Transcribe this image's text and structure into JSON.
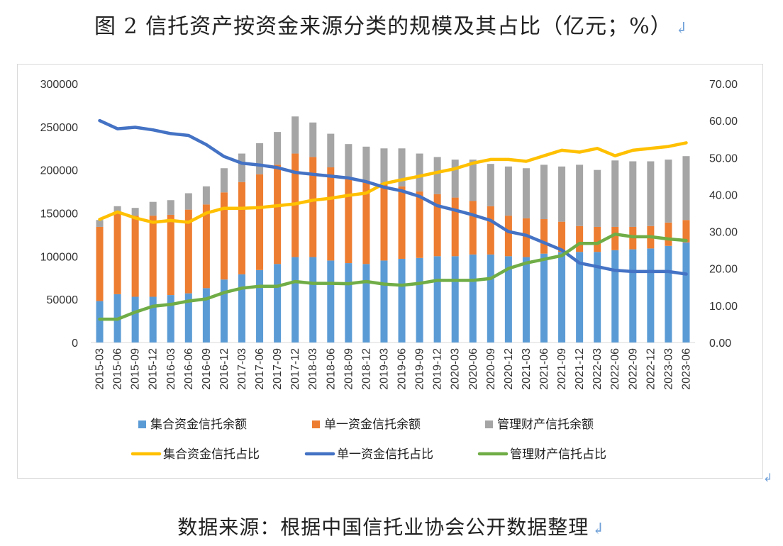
{
  "title": "图 2  信托资产按资金来源分类的规模及其占比（亿元；%）",
  "source": "数据来源：根据中国信托业协会公开数据整理",
  "return_mark": "↲",
  "chart_data": {
    "type": "bar",
    "stacked": true,
    "categories": [
      "2015-03",
      "2015-06",
      "2015-09",
      "2015-12",
      "2016-03",
      "2016-06",
      "2016-09",
      "2016-12",
      "2017-03",
      "2017-06",
      "2017-09",
      "2017-12",
      "2018-03",
      "2018-06",
      "2018-09",
      "2018-12",
      "2019-03",
      "2019-06",
      "2019-09",
      "2019-12",
      "2020-03",
      "2020-06",
      "2020-09",
      "2020-12",
      "2021-03",
      "2021-06",
      "2021-09",
      "2021-12",
      "2022-03",
      "2022-06",
      "2022-09",
      "2022-12",
      "2023-03",
      "2023-06"
    ],
    "y_left": {
      "min": 0,
      "max": 300000,
      "ticks": [
        "0",
        "50000",
        "100000",
        "150000",
        "200000",
        "250000",
        "300000"
      ]
    },
    "y_right": {
      "min": 0,
      "max": 70,
      "ticks": [
        "0.00",
        "10.00",
        "20.00",
        "30.00",
        "40.00",
        "50.00",
        "60.00",
        "70.00"
      ]
    },
    "bar_series": [
      {
        "name": "集合资金信托余额",
        "color": "#5b9bd5",
        "values": [
          48000,
          56000,
          53000,
          53000,
          55000,
          57000,
          63000,
          73000,
          79000,
          84000,
          91000,
          99000,
          99000,
          95000,
          92000,
          91000,
          95000,
          97000,
          98000,
          100000,
          100000,
          102000,
          102000,
          100000,
          99000,
          103000,
          105000,
          105000,
          105000,
          107000,
          108000,
          109000,
          112000,
          116000
        ]
      },
      {
        "name": "单一资金信托余额",
        "color": "#ed7d31",
        "values": [
          86000,
          95000,
          94000,
          94000,
          93000,
          97000,
          97000,
          101000,
          107000,
          111000,
          115000,
          120000,
          116000,
          108000,
          100000,
          97000,
          90000,
          84000,
          77000,
          72000,
          68000,
          62000,
          56000,
          47000,
          45000,
          40000,
          35000,
          30000,
          29000,
          27000,
          26000,
          26000,
          27000,
          26000
        ]
      },
      {
        "name": "管理财产信托余额",
        "color": "#a5a5a5",
        "values": [
          8000,
          7000,
          9000,
          16000,
          17000,
          19000,
          21000,
          28000,
          33000,
          36000,
          38000,
          43000,
          40000,
          39000,
          38000,
          39000,
          40000,
          44000,
          44000,
          43000,
          44000,
          48000,
          49000,
          57000,
          58000,
          63000,
          64000,
          71000,
          66000,
          77000,
          76000,
          75000,
          73000,
          74000
        ]
      }
    ],
    "line_series": [
      {
        "name": "集合资金信托占比",
        "color": "#ffc000",
        "values": [
          33.3,
          35.3,
          33.7,
          32.5,
          33.0,
          32.5,
          35.0,
          36.3,
          36.3,
          36.5,
          37.0,
          37.5,
          38.5,
          39.0,
          39.8,
          40.4,
          43.0,
          44.0,
          45.0,
          46.0,
          47.0,
          48.5,
          49.5,
          49.5,
          49.0,
          50.5,
          52.0,
          51.5,
          52.5,
          50.5,
          52.0,
          52.5,
          53.0,
          54.0
        ]
      },
      {
        "name": "单一资金信托占比",
        "color": "#4472c4",
        "values": [
          60.0,
          57.8,
          58.2,
          57.5,
          56.5,
          56.0,
          53.5,
          50.3,
          48.5,
          48.0,
          47.3,
          46.0,
          45.5,
          45.0,
          44.5,
          43.5,
          42.0,
          41.0,
          39.5,
          37.0,
          35.8,
          34.5,
          33.0,
          30.0,
          29.0,
          27.0,
          25.0,
          21.5,
          20.5,
          19.5,
          19.2,
          19.2,
          19.2,
          18.5
        ]
      },
      {
        "name": "管理财产信托占比",
        "color": "#70ad47",
        "values": [
          6.3,
          6.3,
          8.2,
          9.8,
          10.3,
          11.2,
          11.8,
          13.5,
          14.7,
          15.2,
          15.2,
          16.5,
          16.0,
          16.0,
          15.9,
          16.5,
          15.8,
          15.5,
          16.0,
          16.8,
          16.8,
          16.8,
          17.3,
          20.0,
          21.5,
          22.5,
          23.5,
          26.8,
          26.8,
          29.3,
          28.6,
          28.6,
          28.0,
          27.6
        ]
      }
    ],
    "legend_position": "bottom",
    "grid": false
  }
}
